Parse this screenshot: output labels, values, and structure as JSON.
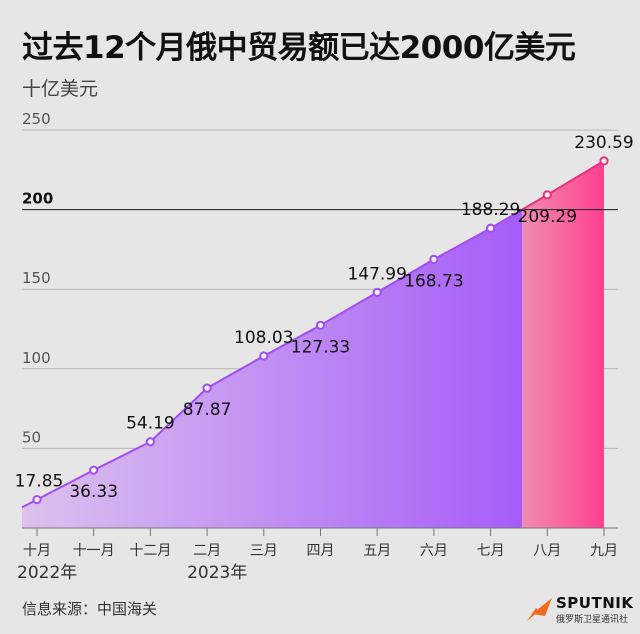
{
  "header": {
    "title": "过去12个月俄中贸易额已达2000亿美元",
    "unit": "十亿美元"
  },
  "footer": {
    "source": "信息来源：中国海关",
    "brand_name": "SPUTNIK",
    "brand_sub": "俄罗斯卫星通讯社"
  },
  "colors": {
    "purple_line": "#a24cf2",
    "purple_fill_start": "#dcc2ee",
    "purple_fill_end": "#a65cf8",
    "pink_line": "#e8317a",
    "pink_fill_start": "#f08cb4",
    "pink_fill_end": "#ff3f8e",
    "logo_orange": "#f26a1b"
  },
  "chart_data": {
    "type": "area",
    "categories": [
      "十月",
      "十一月",
      "十二月",
      "二月",
      "三月",
      "四月",
      "五月",
      "六月",
      "七月",
      "八月",
      "九月"
    ],
    "values": [
      17.85,
      36.33,
      54.19,
      87.87,
      108.03,
      127.33,
      147.99,
      168.73,
      188.29,
      209.29,
      230.59
    ],
    "labels": [
      "17.85",
      "36.33",
      "54.19",
      "87.87",
      "108.03",
      "127.33",
      "147.99",
      "168.73",
      "188.29",
      "209.29",
      "230.59"
    ],
    "year_labels": [
      {
        "text": "2022年",
        "category": "十月"
      },
      {
        "text": "2023年",
        "category": "二月"
      }
    ],
    "ylabel": "十亿美元",
    "ylim": [
      0,
      250
    ],
    "yticks": [
      50,
      100,
      150,
      200,
      250
    ],
    "highlight_threshold": 200,
    "grid": true
  }
}
